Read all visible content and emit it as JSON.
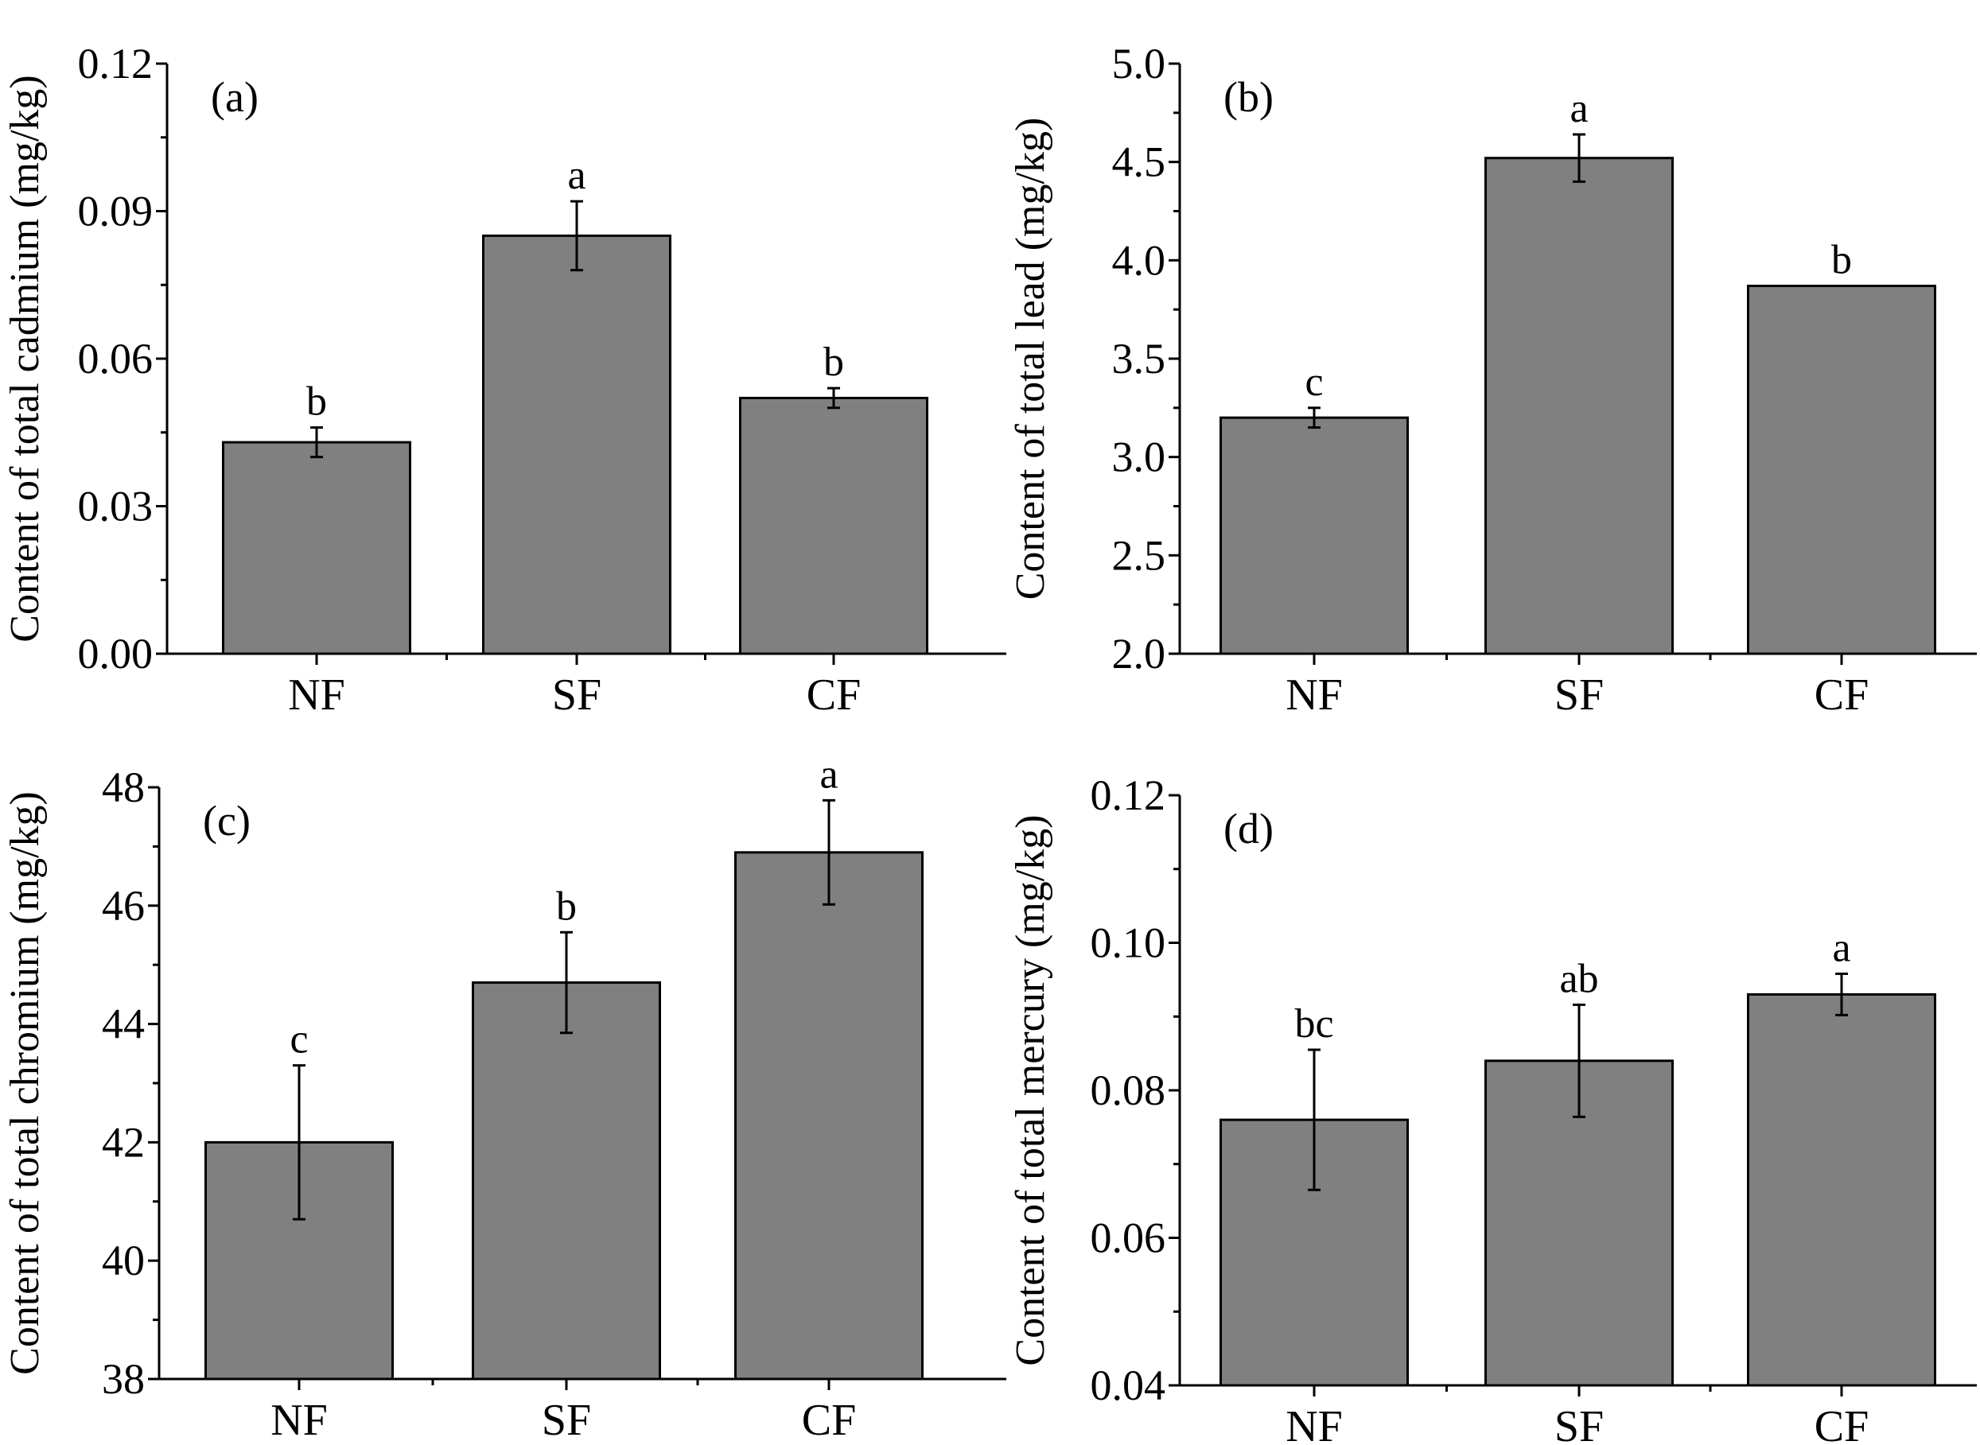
{
  "colors": {
    "bar": "#808080",
    "stroke": "#000000",
    "background": "#ffffff"
  },
  "chart_data": [
    {
      "type": "bar",
      "panel": "(a)",
      "ylabel": "Content of total cadmium (mg/kg)",
      "categories": [
        "NF",
        "SF",
        "CF"
      ],
      "values": [
        0.043,
        0.085,
        0.052
      ],
      "errors": [
        0.003,
        0.007,
        0.002
      ],
      "significance": [
        "b",
        "a",
        "b"
      ],
      "ylim": [
        0.0,
        0.12
      ],
      "yticks": [
        0.0,
        0.03,
        0.06,
        0.09,
        0.12
      ],
      "ytick_labels": [
        "0.00",
        "0.03",
        "0.06",
        "0.09",
        "0.12"
      ],
      "grid": false
    },
    {
      "type": "bar",
      "panel": "(b)",
      "ylabel": "Content of total lead (mg/kg)",
      "categories": [
        "NF",
        "SF",
        "CF"
      ],
      "values": [
        3.2,
        4.52,
        3.87
      ],
      "errors": [
        0.05,
        0.12,
        0.0
      ],
      "significance": [
        "c",
        "a",
        "b"
      ],
      "ylim": [
        2.0,
        5.0
      ],
      "yticks": [
        2.0,
        2.5,
        3.0,
        3.5,
        4.0,
        4.5,
        5.0
      ],
      "ytick_labels": [
        "2.0",
        "2.5",
        "3.0",
        "3.5",
        "4.0",
        "4.5",
        "5.0"
      ],
      "grid": false
    },
    {
      "type": "bar",
      "panel": "(c)",
      "ylabel": "Content of total chromium (mg/kg)",
      "categories": [
        "NF",
        "SF",
        "CF"
      ],
      "values": [
        42.0,
        44.7,
        46.9
      ],
      "errors": [
        1.3,
        0.85,
        0.88
      ],
      "significance": [
        "c",
        "b",
        "a"
      ],
      "ylim": [
        38,
        48
      ],
      "yticks": [
        38,
        40,
        42,
        44,
        46,
        48
      ],
      "ytick_labels": [
        "38",
        "40",
        "42",
        "44",
        "46",
        "48"
      ],
      "grid": false
    },
    {
      "type": "bar",
      "panel": "(d)",
      "ylabel": "Content of total mercury (mg/kg)",
      "categories": [
        "NF",
        "SF",
        "CF"
      ],
      "values": [
        0.076,
        0.084,
        0.093
      ],
      "errors": [
        0.0095,
        0.0076,
        0.0028
      ],
      "significance": [
        "bc",
        "ab",
        "a"
      ],
      "ylim": [
        0.04,
        0.12
      ],
      "yticks": [
        0.04,
        0.06,
        0.08,
        0.1,
        0.12
      ],
      "ytick_labels": [
        "0.04",
        "0.06",
        "0.08",
        "0.10",
        "0.12"
      ],
      "grid": false
    }
  ]
}
